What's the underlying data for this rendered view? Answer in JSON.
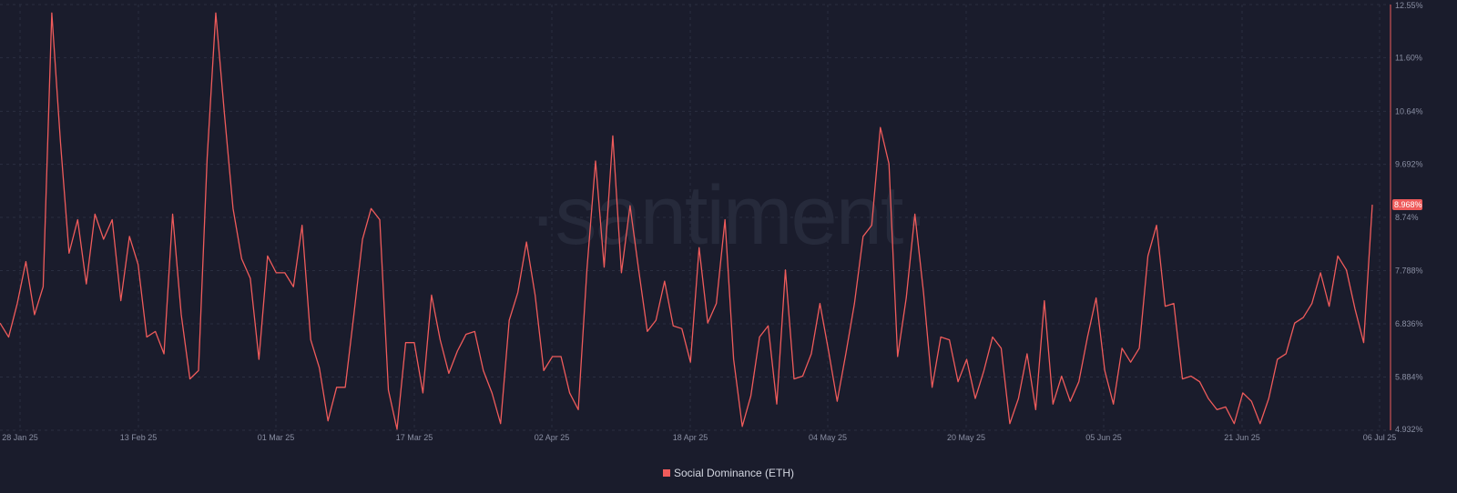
{
  "colors": {
    "background": "#1a1c2c",
    "line": "#ef5b5b",
    "grid": "#2a2e40",
    "axis_text": "#8a8fa3",
    "badge_bg": "#ef5b5b",
    "badge_text": "#ffffff"
  },
  "watermark": "·santiment·",
  "chart_data": {
    "type": "line",
    "x_tick_labels": [
      "28 Jan 25",
      "13 Feb 25",
      "01 Mar 25",
      "17 Mar 25",
      "02 Apr 25",
      "18 Apr 25",
      "04 May 25",
      "20 May 25",
      "05 Jun 25",
      "21 Jun 25",
      "06 Jul 25"
    ],
    "y_tick_labels": [
      "12.55%",
      "11.60%",
      "10.64%",
      "9.692%",
      "8.74%",
      "7.788%",
      "6.836%",
      "5.884%",
      "4.932%"
    ],
    "y_ticks": [
      12.55,
      11.6,
      10.64,
      9.692,
      8.74,
      7.788,
      6.836,
      5.884,
      4.932
    ],
    "ylim": [
      4.932,
      12.55
    ],
    "grid": true,
    "legend_position": "bottom-center",
    "last_value_label": "8.968%",
    "series": [
      {
        "name": "Social Dominance (ETH)",
        "values": [
          6.85,
          6.6,
          7.2,
          7.95,
          7.0,
          7.5,
          12.4,
          10.1,
          8.1,
          8.7,
          7.55,
          8.8,
          8.35,
          8.7,
          7.25,
          8.4,
          7.9,
          6.6,
          6.7,
          6.3,
          8.8,
          7.0,
          5.85,
          6.0,
          9.8,
          12.4,
          10.6,
          8.9,
          8.0,
          7.65,
          6.2,
          8.05,
          7.75,
          7.75,
          7.5,
          8.6,
          6.55,
          6.05,
          5.1,
          5.7,
          5.7,
          7.0,
          8.35,
          8.9,
          8.7,
          5.65,
          4.95,
          6.5,
          6.5,
          5.6,
          7.35,
          6.55,
          5.95,
          6.35,
          6.65,
          6.7,
          6.0,
          5.6,
          5.05,
          6.9,
          7.4,
          8.3,
          7.35,
          6.0,
          6.25,
          6.25,
          5.6,
          5.3,
          7.8,
          9.75,
          7.85,
          10.2,
          7.75,
          8.95,
          7.8,
          6.7,
          6.9,
          7.6,
          6.8,
          6.75,
          6.15,
          8.2,
          6.85,
          7.2,
          8.7,
          6.2,
          5.0,
          5.55,
          6.6,
          6.8,
          5.4,
          7.8,
          5.85,
          5.9,
          6.3,
          7.2,
          6.35,
          5.45,
          6.3,
          7.2,
          8.4,
          8.6,
          10.35,
          9.7,
          6.25,
          7.3,
          8.8,
          7.4,
          5.7,
          6.6,
          6.55,
          5.8,
          6.2,
          5.5,
          6.0,
          6.6,
          6.4,
          5.05,
          5.5,
          6.3,
          5.3,
          7.25,
          5.4,
          5.9,
          5.45,
          5.8,
          6.6,
          7.3,
          6.0,
          5.4,
          6.4,
          6.15,
          6.4,
          8.05,
          8.6,
          7.15,
          7.2,
          5.85,
          5.9,
          5.8,
          5.5,
          5.3,
          5.35,
          5.05,
          5.6,
          5.45,
          5.05,
          5.5,
          6.2,
          6.3,
          6.85,
          6.95,
          7.2,
          7.75,
          7.15,
          8.05,
          7.8,
          7.1,
          6.5,
          8.968
        ]
      }
    ]
  }
}
